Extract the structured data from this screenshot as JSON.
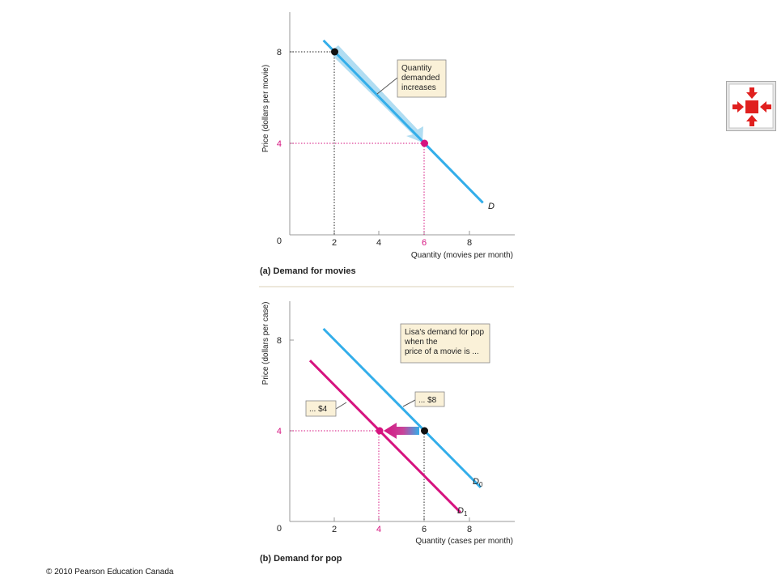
{
  "colors": {
    "curve_blue": "#33aeea",
    "curve_magenta": "#d6137f",
    "point_black": "#111111",
    "callout_fill": "#faf1d8",
    "arrow_band": "#a9d9f1",
    "nav_red": "#e0201f"
  },
  "chart_data": [
    {
      "type": "line",
      "title": "(a) Demand for movies",
      "xlabel": "Quantity (movies per month)",
      "ylabel": "Price (dollars per movie)",
      "xlim": [
        0,
        10
      ],
      "ylim": [
        0,
        10
      ],
      "xticks": [
        "2",
        "4",
        "6",
        "8"
      ],
      "xtick_values": [
        2,
        4,
        6,
        8
      ],
      "yticks": [
        "4",
        "8"
      ],
      "ytick_values": [
        4,
        8
      ],
      "origin_label": "0",
      "highlight_tick": "6",
      "series": [
        {
          "name": "D",
          "x": [
            1.5,
            8.6
          ],
          "y": [
            8.5,
            1.4
          ]
        }
      ],
      "points": [
        {
          "x": 2,
          "y": 8,
          "color": "black"
        },
        {
          "x": 6,
          "y": 4,
          "color": "magenta"
        }
      ],
      "annotation": "Quantity demanded increases"
    },
    {
      "type": "line",
      "title": "(b) Demand for pop",
      "xlabel": "Quantity (cases per month)",
      "ylabel": "Price (dollars per case)",
      "xlim": [
        0,
        10
      ],
      "ylim": [
        0,
        10
      ],
      "xticks": [
        "2",
        "4",
        "6",
        "8"
      ],
      "xtick_values": [
        2,
        4,
        6,
        8
      ],
      "yticks": [
        "4",
        "8"
      ],
      "ytick_values": [
        4,
        8
      ],
      "origin_label": "0",
      "highlight_tick": "4",
      "series": [
        {
          "name": "D0",
          "label_main": "D",
          "label_sub": "0",
          "x": [
            1.5,
            8.5
          ],
          "y": [
            8.5,
            1.5
          ]
        },
        {
          "name": "D1",
          "label_main": "D",
          "label_sub": "1",
          "x": [
            0.9,
            7.6
          ],
          "y": [
            7.1,
            0.4
          ]
        }
      ],
      "points": [
        {
          "x": 6,
          "y": 4,
          "color": "black"
        },
        {
          "x": 4,
          "y": 4,
          "color": "magenta"
        }
      ],
      "annotations": {
        "main": "Lisa's demand for pop when the price of a movie is ...",
        "high": "... $8",
        "low": "... $4"
      }
    }
  ],
  "footer": {
    "copyright": "© 2010 Pearson Education Canada"
  },
  "nav": {
    "icon": "shrink-arrows-icon"
  }
}
